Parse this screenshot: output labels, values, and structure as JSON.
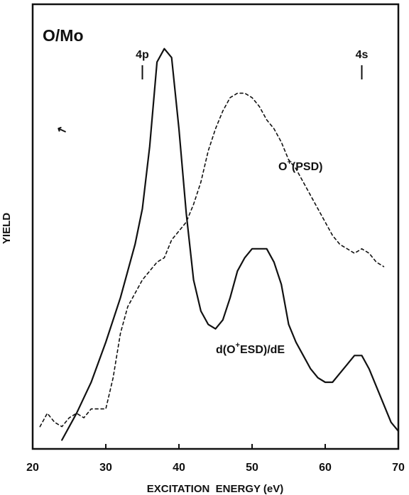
{
  "chart_data": {
    "type": "line",
    "title": "O/Mo",
    "xlabel": "EXCITATION  ENERGY (eV)",
    "ylabel": "YIELD",
    "xlim": [
      20,
      70
    ],
    "ylim": [
      0,
      1
    ],
    "x_ticks": [
      "20",
      "30",
      "40",
      "50",
      "60",
      "70"
    ],
    "grid": false,
    "markers": [
      {
        "label": "4p",
        "x": 35
      },
      {
        "label": "4s",
        "x": 65
      }
    ],
    "series": [
      {
        "name": "d(O+ESD)/dE",
        "label_main": "d(O",
        "label_sup": "+",
        "label_rest": "ESD)/dE",
        "style": "solid",
        "x": [
          24,
          26,
          28,
          30,
          32,
          34,
          35,
          36,
          37,
          38,
          39,
          40,
          41,
          42,
          43,
          44,
          45,
          46,
          47,
          48,
          49,
          50,
          51,
          52,
          53,
          54,
          55,
          56,
          57,
          58,
          59,
          60,
          61,
          62,
          63,
          64,
          65,
          66,
          67,
          68,
          69,
          70
        ],
        "y": [
          0.02,
          0.08,
          0.15,
          0.24,
          0.34,
          0.46,
          0.54,
          0.68,
          0.87,
          0.9,
          0.88,
          0.72,
          0.53,
          0.38,
          0.31,
          0.28,
          0.27,
          0.29,
          0.34,
          0.4,
          0.43,
          0.45,
          0.45,
          0.45,
          0.42,
          0.37,
          0.28,
          0.24,
          0.21,
          0.18,
          0.16,
          0.15,
          0.15,
          0.17,
          0.19,
          0.21,
          0.21,
          0.18,
          0.14,
          0.1,
          0.06,
          0.04
        ]
      },
      {
        "name": "O+(PSD)",
        "label_main": "O",
        "label_sup": "+",
        "label_rest": "(PSD)",
        "style": "dashed",
        "x": [
          21,
          22,
          23,
          24,
          25,
          26,
          27,
          28,
          29,
          30,
          31,
          32,
          33,
          34,
          35,
          36,
          37,
          38,
          39,
          40,
          41,
          42,
          43,
          44,
          45,
          46,
          47,
          48,
          49,
          50,
          51,
          52,
          53,
          54,
          55,
          56,
          57,
          58,
          59,
          60,
          61,
          62,
          63,
          64,
          65,
          66,
          67,
          68
        ],
        "y": [
          0.05,
          0.08,
          0.06,
          0.05,
          0.07,
          0.08,
          0.07,
          0.09,
          0.09,
          0.09,
          0.16,
          0.26,
          0.32,
          0.35,
          0.38,
          0.4,
          0.42,
          0.43,
          0.47,
          0.49,
          0.51,
          0.55,
          0.6,
          0.67,
          0.72,
          0.76,
          0.79,
          0.8,
          0.8,
          0.79,
          0.77,
          0.74,
          0.72,
          0.69,
          0.65,
          0.63,
          0.6,
          0.57,
          0.54,
          0.51,
          0.48,
          0.46,
          0.45,
          0.44,
          0.45,
          0.44,
          0.42,
          0.41
        ]
      }
    ],
    "annotations": [
      "↖"
    ]
  }
}
